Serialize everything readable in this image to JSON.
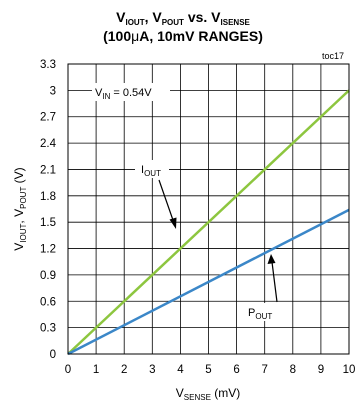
{
  "chart_data": {
    "type": "line",
    "title": {
      "line1_parts": [
        "V",
        "IOUT",
        ", V",
        "POUT",
        " vs. V",
        "ISENSE"
      ],
      "line2_parts": [
        "(100",
        "μ",
        "A, 10mV RANGES)"
      ]
    },
    "xlabel_parts": [
      "V",
      "SENSE",
      " (mV)"
    ],
    "ylabel_parts": [
      "V",
      "IOUT",
      ", V",
      "POUT",
      " (V)"
    ],
    "tag": "toc17",
    "xlim": [
      0,
      10
    ],
    "ylim": [
      0,
      3.3
    ],
    "x_ticks": [
      "0",
      "1",
      "2",
      "3",
      "4",
      "5",
      "6",
      "7",
      "8",
      "9",
      "10"
    ],
    "y_ticks": [
      "0",
      "0.3",
      "0.6",
      "0.9",
      "1.2",
      "1.5",
      "1.8",
      "2.1",
      "2.4",
      "2.7",
      "3",
      "3.3"
    ],
    "grid": true,
    "annotations": {
      "vin": {
        "parts": [
          "V",
          "IN",
          " = 0.54V"
        ]
      },
      "iout": {
        "parts": [
          "I",
          "OUT"
        ]
      },
      "pout": {
        "parts": [
          "P",
          "OUT"
        ]
      }
    },
    "series": [
      {
        "name": "IOUT",
        "color": "#8dc63f",
        "x": [
          0,
          10
        ],
        "y": [
          0,
          3.0
        ]
      },
      {
        "name": "POUT",
        "color": "#3b87c8",
        "x": [
          0,
          10
        ],
        "y": [
          0,
          1.64
        ]
      }
    ]
  }
}
